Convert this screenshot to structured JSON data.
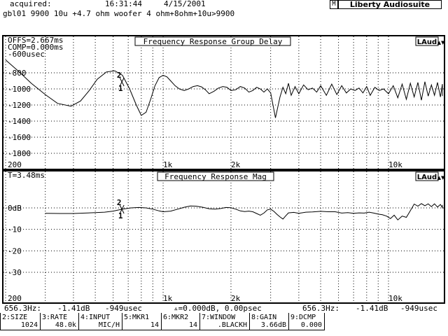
{
  "header": {
    "acquired_label": "acquired:",
    "time": "16:31:44",
    "date": "4/15/2001",
    "brand_tag": "M",
    "brand": "Liberty Audiosuite",
    "description": "gbl01 9900 10u +4.7 ohm woofer 4 ohm+8ohm+10u>9900"
  },
  "top_plot": {
    "title": "Frequency Response Group Delay",
    "logo": "LAud",
    "scroll_button": "▲▼",
    "info": [
      "OFFS=2.667ms",
      "COMP=0.000ms"
    ],
    "y_unit": "-600usec",
    "y_ticks": [
      "-800",
      "-1000",
      "-1200",
      "-1400",
      "-1600",
      "-1800"
    ],
    "x_ticks": [
      "200",
      "1k",
      "2k",
      "10k"
    ],
    "marker_labels": [
      "2",
      "1"
    ]
  },
  "bottom_plot": {
    "title": "Frequency Response Mag",
    "logo": "LAud",
    "scroll_button": "▲▼",
    "info": [
      "T=3.48ms"
    ],
    "y_ticks": [
      "0dB",
      "-10",
      "-20",
      "-30"
    ],
    "x_ticks": [
      "200",
      "1k",
      "2k",
      "10k"
    ],
    "marker_labels": [
      "2",
      "1"
    ]
  },
  "status": {
    "m1_freq": "656.3Hz:",
    "m1_level": "-1.41dB",
    "m1_delay": "-949usec",
    "delta": "▵=0.000dB, 0.00psec",
    "m2_freq": "656.3Hz:",
    "m2_level": "-1.41dB",
    "m2_delay": "-949usec"
  },
  "softkeys": [
    {
      "label": "2:SIZE",
      "value": "1024"
    },
    {
      "label": "3:RATE",
      "value": "48.0k"
    },
    {
      "label": "4:INPUT",
      "value": "MIC/H"
    },
    {
      "label": "5:MKR1",
      "value": "14"
    },
    {
      "label": "6:MKR2",
      "value": "14"
    },
    {
      "label": "7:WINDOW",
      "value": ".BLACKH"
    },
    {
      "label": "8:GAIN",
      "value": "3.66dB"
    },
    {
      "label": "9:DCMP",
      "value": "0.000"
    }
  ],
  "chart_data": [
    {
      "type": "line",
      "title": "Frequency Response Group Delay",
      "x_scale": "log",
      "xlim": [
        200,
        20000
      ],
      "ylim": [
        -1900,
        -600
      ],
      "y_ticks": [
        -800,
        -1000,
        -1200,
        -1400,
        -1600,
        -1800
      ],
      "x_ticks": [
        200,
        1000,
        2000,
        10000
      ],
      "grid": true,
      "series": [
        {
          "x": [
            200,
            230,
            260,
            300,
            340,
            390,
            430,
            470,
            510,
            560,
            610,
            660,
            710,
            760,
            800,
            840,
            880,
            920,
            960,
            1000,
            1040,
            1080,
            1130,
            1180,
            1240,
            1300,
            1360,
            1420,
            1480,
            1540,
            1600,
            1680,
            1760,
            1840,
            1920,
            2000,
            2100,
            2200,
            2300,
            2400,
            2500,
            2600,
            2700,
            2800,
            2900,
            3000,
            3150,
            3300,
            3400,
            3500,
            3600,
            3700,
            3850,
            4000,
            4200,
            4400,
            4600,
            4800,
            5000,
            5300,
            5600,
            5900,
            6200,
            6500,
            6800,
            7100,
            7400,
            7700,
            8000,
            8300,
            8700,
            9100,
            9500,
            10000,
            10500,
            11000,
            11500,
            12000,
            12500,
            13000,
            13500,
            14000,
            14500,
            15000,
            15500,
            16000,
            16500,
            17000,
            17500,
            18000,
            18500,
            19000,
            19500,
            20000
          ],
          "y": [
            -640,
            -790,
            -930,
            -1070,
            -1180,
            -1215,
            -1150,
            -1020,
            -880,
            -790,
            -775,
            -830,
            -1000,
            -1200,
            -1330,
            -1290,
            -1130,
            -960,
            -860,
            -830,
            -850,
            -900,
            -960,
            -1000,
            -1020,
            -1000,
            -970,
            -960,
            -975,
            -1010,
            -1060,
            -1030,
            -990,
            -970,
            -980,
            -1020,
            -1010,
            -970,
            -990,
            -1040,
            -1020,
            -980,
            -1000,
            -1040,
            -1000,
            -1050,
            -1360,
            -1100,
            -980,
            -1060,
            -930,
            -1080,
            -970,
            -1060,
            -950,
            -1010,
            -990,
            -1040,
            -960,
            -1080,
            -940,
            -1070,
            -960,
            -1050,
            -1000,
            -1020,
            -990,
            -1050,
            -970,
            -1080,
            -980,
            -1020,
            -1000,
            -1060,
            -960,
            -1110,
            -940,
            -1130,
            -930,
            -1100,
            -920,
            -1140,
            -910,
            -1090,
            -950,
            -1080,
            -920,
            -1100,
            -940,
            -1070,
            -950,
            -1090,
            -960,
            -1040
          ]
        }
      ]
    },
    {
      "type": "line",
      "title": "Frequency Response Mag",
      "x_scale": "log",
      "xlim": [
        200,
        20000
      ],
      "ylim": [
        -40,
        5
      ],
      "y_ticks": [
        0,
        -10,
        -20,
        -30
      ],
      "x_ticks": [
        200,
        1000,
        2000,
        10000
      ],
      "grid": true,
      "series": [
        {
          "x": [
            300,
            350,
            400,
            450,
            500,
            550,
            600,
            660,
            720,
            780,
            840,
            900,
            960,
            1000,
            1080,
            1160,
            1240,
            1320,
            1400,
            1500,
            1600,
            1700,
            1800,
            1900,
            2000,
            2100,
            2200,
            2300,
            2400,
            2500,
            2600,
            2700,
            2800,
            2900,
            3000,
            3100,
            3200,
            3300,
            3400,
            3500,
            3600,
            3800,
            4000,
            4300,
            4600,
            5000,
            5400,
            5800,
            6200,
            6600,
            7000,
            7400,
            7800,
            8200,
            8600,
            9000,
            9400,
            9800,
            10200,
            10600,
            11000,
            11500,
            12000,
            12500,
            13000,
            13500,
            14000,
            14500,
            15000,
            15500,
            16000,
            16500,
            17000,
            17500,
            18000,
            18500,
            19000,
            19500,
            20000
          ],
          "y": [
            -2.5,
            -2.6,
            -2.6,
            -2.4,
            -2.2,
            -2.0,
            -1.5,
            -0.6,
            0.0,
            0.2,
            0.0,
            -0.6,
            -1.4,
            -1.8,
            -1.5,
            -0.6,
            0.3,
            0.9,
            0.8,
            0.3,
            -0.4,
            -0.6,
            -0.3,
            0.2,
            0.1,
            -0.6,
            -1.4,
            -1.7,
            -1.5,
            -1.8,
            -2.6,
            -3.4,
            -2.4,
            -0.9,
            -0.6,
            -1.6,
            -3.0,
            -4.2,
            -5.2,
            -3.7,
            -2.3,
            -2.1,
            -2.5,
            -2.0,
            -1.9,
            -1.6,
            -1.8,
            -1.8,
            -2.4,
            -2.2,
            -2.5,
            -2.3,
            -2.4,
            -2.0,
            -2.4,
            -2.9,
            -3.2,
            -3.8,
            -5.0,
            -3.4,
            -5.6,
            -3.8,
            -4.4,
            -1.3,
            1.8,
            0.8,
            2.0,
            1.0,
            1.9,
            0.6,
            1.9,
            0.4,
            1.6,
            0.1,
            1.4,
            0.1,
            1.2,
            -0.2,
            1.0
          ]
        }
      ]
    }
  ]
}
